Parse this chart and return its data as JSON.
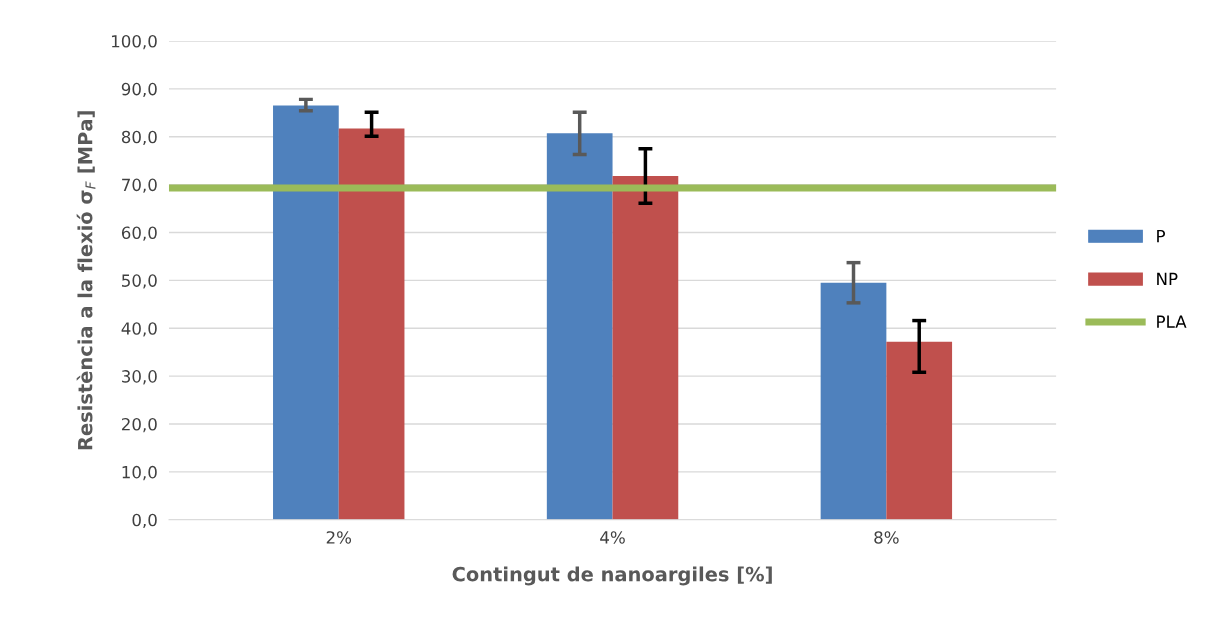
{
  "chart_data": {
    "type": "bar",
    "xlabel": "Contingut de nanoargiles [%]",
    "ylabel": "Resistència a la flexió σ$_{F}$ [MPa]",
    "categories": [
      "2%",
      "4%",
      "8%"
    ],
    "series": [
      {
        "name": "P",
        "color": "#4f81bd",
        "values": [
          86.5,
          80.7,
          49.5
        ],
        "errors": [
          [
            85.4,
            87.8
          ],
          [
            76.3,
            85.1
          ],
          [
            45.3,
            53.7
          ]
        ]
      },
      {
        "name": "NP",
        "color": "#c0504d",
        "values": [
          81.7,
          71.8,
          37.2
        ],
        "errors": [
          [
            80.1,
            85.1
          ],
          [
            66.1,
            77.5
          ],
          [
            30.8,
            41.6
          ]
        ]
      }
    ],
    "ref_lines": [
      {
        "axis": "y",
        "value": 69.3,
        "label": "PLA",
        "color": "#9bbb59"
      }
    ],
    "ylim": [
      0,
      100
    ],
    "yticks": [
      {
        "value": 0,
        "label": "0,0"
      },
      {
        "value": 10,
        "label": "10,0"
      },
      {
        "value": 20,
        "label": "20,0"
      },
      {
        "value": 30,
        "label": "30,0"
      },
      {
        "value": 40,
        "label": "40,0"
      },
      {
        "value": 50,
        "label": "50,0"
      },
      {
        "value": 60,
        "label": "60,0"
      },
      {
        "value": 70,
        "label": "70,0"
      },
      {
        "value": 80,
        "label": "80,0"
      },
      {
        "value": 90,
        "label": "90,0"
      },
      {
        "value": 100,
        "label": "100,0"
      }
    ],
    "grid": "y",
    "legend": "right"
  }
}
